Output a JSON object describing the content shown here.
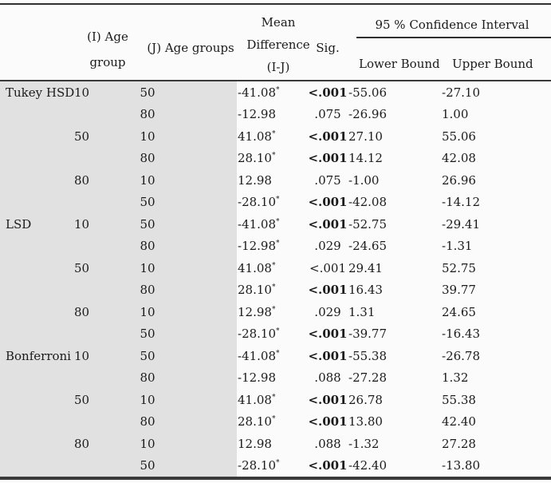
{
  "table": {
    "title": "Multiple comparisons post-hoc table",
    "header": {
      "i_group": "(I) Age\ngroup",
      "j_group": "(J) Age groups",
      "mean_diff": "Mean\nDifference\n(I-J)",
      "sig": "Sig.",
      "ci": "95 % Confidence Interval",
      "lower": "Lower Bound",
      "upper": "Upper Bound"
    },
    "colors": {
      "shaded_panel": "#e1e1e1",
      "rule": "#333333",
      "text": "#1b1b1b",
      "background": "#fbfbfb"
    },
    "sections": [
      {
        "method": "Tukey HSD",
        "groups": [
          {
            "i": "10",
            "comparisons": [
              {
                "j": "50",
                "md": "-41.08",
                "star": "*",
                "sig": "<.001",
                "sig_bold": true,
                "lower": "-55.06",
                "upper": "-27.10"
              },
              {
                "j": "80",
                "md": "-12.98",
                "star": "",
                "sig": ".075",
                "sig_bold": false,
                "lower": "-26.96",
                "upper": "1.00"
              }
            ]
          },
          {
            "i": "50",
            "comparisons": [
              {
                "j": "10",
                "md": "41.08",
                "star": "*",
                "sig": "<.001",
                "sig_bold": true,
                "lower": "27.10",
                "upper": "55.06"
              },
              {
                "j": "80",
                "md": "28.10",
                "star": "*",
                "sig": "<.001",
                "sig_bold": true,
                "lower": "14.12",
                "upper": "42.08"
              }
            ]
          },
          {
            "i": "80",
            "comparisons": [
              {
                "j": "10",
                "md": "12.98",
                "star": "",
                "sig": ".075",
                "sig_bold": false,
                "lower": "-1.00",
                "upper": "26.96"
              },
              {
                "j": "50",
                "md": "-28.10",
                "star": "*",
                "sig": "<.001",
                "sig_bold": true,
                "lower": "-42.08",
                "upper": "-14.12"
              }
            ]
          }
        ]
      },
      {
        "method": "LSD",
        "groups": [
          {
            "i": "10",
            "comparisons": [
              {
                "j": "50",
                "md": "-41.08",
                "star": "*",
                "sig": "<.001",
                "sig_bold": true,
                "lower": "-52.75",
                "upper": "-29.41"
              },
              {
                "j": "80",
                "md": "-12.98",
                "star": "*",
                "sig": ".029",
                "sig_bold": false,
                "lower": "-24.65",
                "upper": "-1.31"
              }
            ]
          },
          {
            "i": "50",
            "comparisons": [
              {
                "j": "10",
                "md": "41.08",
                "star": "*",
                "sig": "<.001",
                "sig_bold": false,
                "lower": "29.41",
                "upper": "52.75"
              },
              {
                "j": "80",
                "md": "28.10",
                "star": "*",
                "sig": "<.001",
                "sig_bold": true,
                "lower": "16.43",
                "upper": "39.77"
              }
            ]
          },
          {
            "i": "80",
            "comparisons": [
              {
                "j": "10",
                "md": "12.98",
                "star": "*",
                "sig": ".029",
                "sig_bold": false,
                "lower": "1.31",
                "upper": "24.65"
              },
              {
                "j": "50",
                "md": "-28.10",
                "star": "*",
                "sig": "<.001",
                "sig_bold": true,
                "lower": "-39.77",
                "upper": "-16.43"
              }
            ]
          }
        ]
      },
      {
        "method": "Bonferroni",
        "groups": [
          {
            "i": "10",
            "comparisons": [
              {
                "j": "50",
                "md": "-41.08",
                "star": "*",
                "sig": "<.001",
                "sig_bold": true,
                "lower": "-55.38",
                "upper": "-26.78"
              },
              {
                "j": "80",
                "md": "-12.98",
                "star": "",
                "sig": ".088",
                "sig_bold": false,
                "lower": "-27.28",
                "upper": "1.32"
              }
            ]
          },
          {
            "i": "50",
            "comparisons": [
              {
                "j": "10",
                "md": "41.08",
                "star": "*",
                "sig": "<.001",
                "sig_bold": true,
                "lower": "26.78",
                "upper": "55.38"
              },
              {
                "j": "80",
                "md": "28.10",
                "star": "*",
                "sig": "<.001",
                "sig_bold": true,
                "lower": "13.80",
                "upper": "42.40"
              }
            ]
          },
          {
            "i": "80",
            "comparisons": [
              {
                "j": "10",
                "md": "12.98",
                "star": "",
                "sig": ".088",
                "sig_bold": false,
                "lower": "-1.32",
                "upper": "27.28"
              },
              {
                "j": "50",
                "md": "-28.10",
                "star": "*",
                "sig": "<.001",
                "sig_bold": true,
                "lower": "-42.40",
                "upper": "-13.80"
              }
            ]
          }
        ]
      }
    ]
  }
}
